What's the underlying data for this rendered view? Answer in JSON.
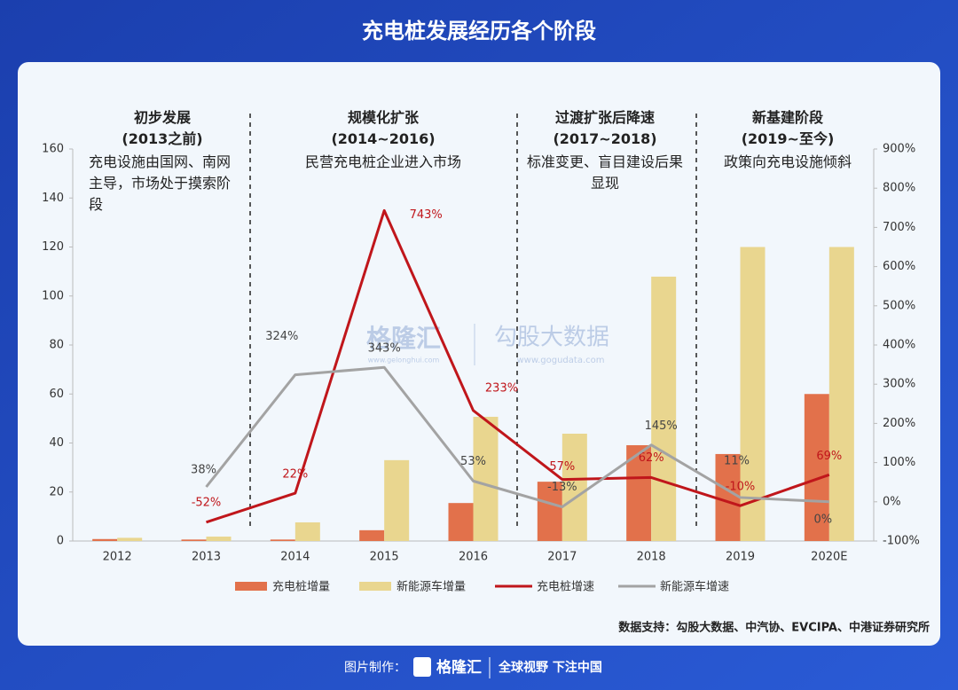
{
  "chart_data": {
    "type": "bar",
    "title": "充电桩发展经历各个阶段",
    "categories": [
      "2012",
      "2013",
      "2014",
      "2015",
      "2016",
      "2017",
      "2018",
      "2019",
      "2020E"
    ],
    "series": [
      {
        "name": "充电桩增量",
        "type": "bar",
        "color": "#e2714b",
        "values": [
          0.8,
          0.6,
          0.6,
          4.4,
          15.5,
          24.2,
          39.1,
          35.5,
          60
        ]
      },
      {
        "name": "新能源车增量",
        "type": "bar",
        "color": "#e9d68f",
        "values": [
          1.3,
          1.8,
          7.6,
          33,
          50.7,
          43.8,
          107.9,
          120,
          120
        ]
      },
      {
        "name": "充电桩增速",
        "type": "line",
        "axis": "y2",
        "color": "#c0161b",
        "values": [
          null,
          -52,
          22,
          743,
          233,
          57,
          62,
          -10,
          69
        ],
        "value_labels": [
          null,
          "-52%",
          "22%",
          "743%",
          "233%",
          "57%",
          "62%",
          "-10%",
          "69%"
        ]
      },
      {
        "name": "新能源车增速",
        "type": "line",
        "axis": "y2",
        "color": "#a3a3a3",
        "values": [
          null,
          38,
          324,
          343,
          53,
          -13,
          145,
          11,
          0
        ],
        "value_labels": [
          null,
          "38%",
          "324%",
          "343%",
          "53%",
          "-13%",
          "145%",
          "11%",
          "0%"
        ]
      }
    ],
    "ylim": [
      0,
      160
    ],
    "yticks": [
      0,
      20,
      40,
      60,
      80,
      100,
      120,
      140,
      160
    ],
    "y2lim": [
      -100,
      900
    ],
    "y2ticks": [
      {
        "value": -100,
        "label": "-100%"
      },
      {
        "value": 0,
        "label": "0%"
      },
      {
        "value": 100,
        "label": "100%"
      },
      {
        "value": 200,
        "label": "200%"
      },
      {
        "value": 300,
        "label": "300%"
      },
      {
        "value": 400,
        "label": "400%"
      },
      {
        "value": 500,
        "label": "500%"
      },
      {
        "value": 600,
        "label": "600%"
      },
      {
        "value": 700,
        "label": "700%"
      },
      {
        "value": 800,
        "label": "800%"
      },
      {
        "value": 900,
        "label": "900%"
      }
    ],
    "stages": [
      {
        "title": "初步发展",
        "period": "(2013之前)",
        "desc": "充电设施由国网、南网主导，市场处于摸索阶段"
      },
      {
        "title": "规模化扩张",
        "period": "(2014~2016)",
        "desc": "民营充电桩企业进入市场"
      },
      {
        "title": "过渡扩张后降速",
        "period": "(2017~2018)",
        "desc": "标准变更、盲目建设后果显现"
      },
      {
        "title": "新基建阶段",
        "period": "(2019~至今)",
        "desc": "政策向充电设施倾斜"
      }
    ],
    "source": "数据支持：勾股大数据、中汽协、EVCIPA、中港证券研究所"
  },
  "watermark": {
    "brand": "格隆汇",
    "brand_url": "www.gelonghui.com",
    "name": "勾股大数据",
    "url": "www.gogudata.com"
  },
  "footer": {
    "label": "图片制作：",
    "brand": "格隆汇",
    "slogan": "全球视野 下注中国"
  }
}
